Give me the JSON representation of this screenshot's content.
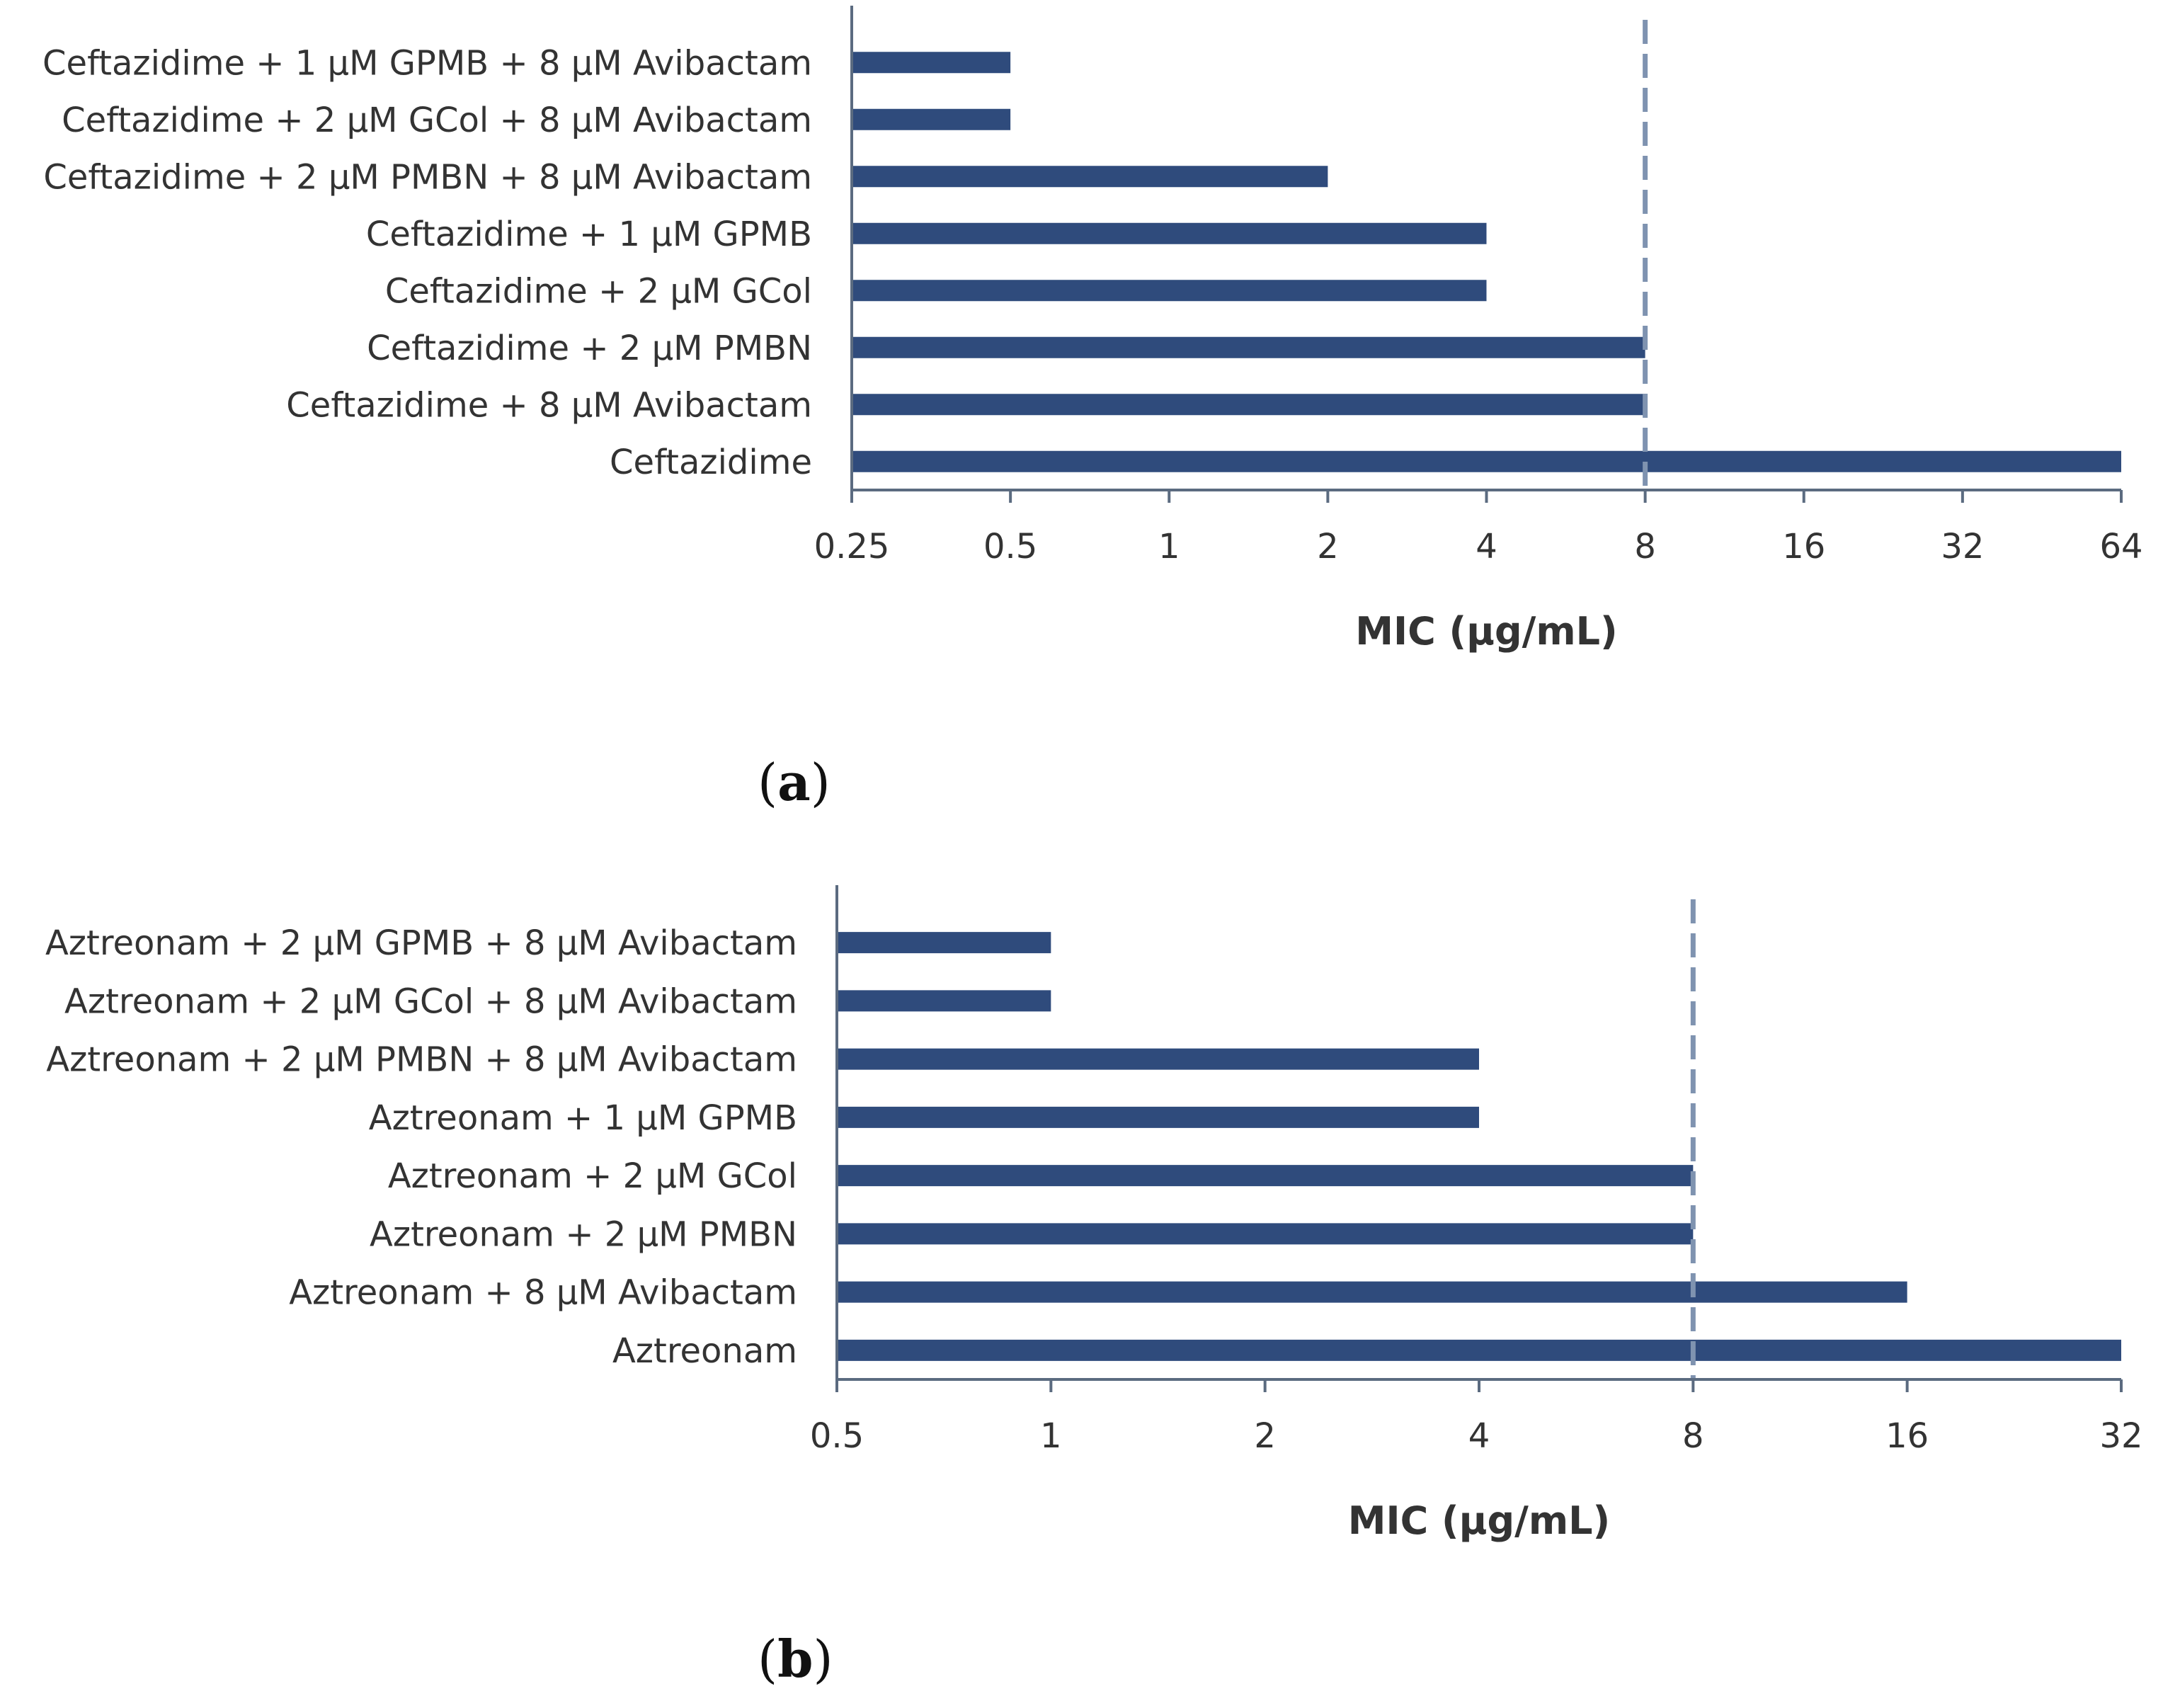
{
  "colors": {
    "bar": "#2f4b7c",
    "axis": "#5b6b80",
    "reference": "#7f93b0",
    "text": "#333333"
  },
  "chart_data": [
    {
      "type": "bar",
      "orientation": "horizontal",
      "x_scale": "log2",
      "categories": [
        "Ceftazidime + 1 µM GPMB + 8 µM Avibactam",
        "Ceftazidime + 2 µM GCol + 8 µM Avibactam",
        "Ceftazidime + 2 µM PMBN + 8 µM Avibactam",
        "Ceftazidime + 1 µM GPMB",
        "Ceftazidime + 2 µM GCol",
        "Ceftazidime + 2 µM PMBN",
        "Ceftazidime + 8 µM Avibactam",
        "Ceftazidime"
      ],
      "values": [
        0.5,
        0.5,
        2,
        4,
        4,
        8,
        8,
        64
      ],
      "xlim": [
        0.25,
        64
      ],
      "xticks": [
        "0.25",
        "0.5",
        "1",
        "2",
        "4",
        "8",
        "16",
        "32",
        "64"
      ],
      "reference_line": 8,
      "xlabel": "MIC (µg/mL)",
      "panel_label": "(a)",
      "panel_letter": "a"
    },
    {
      "type": "bar",
      "orientation": "horizontal",
      "x_scale": "log2",
      "categories": [
        "Aztreonam + 2 µM GPMB + 8 µM Avibactam",
        "Aztreonam + 2 µM GCol + 8 µM Avibactam",
        "Aztreonam + 2 µM PMBN + 8 µM Avibactam",
        "Aztreonam + 1 µM GPMB",
        "Aztreonam + 2 µM GCol",
        "Aztreonam + 2 µM PMBN",
        "Aztreonam + 8 µM Avibactam",
        "Aztreonam"
      ],
      "values": [
        1,
        1,
        4,
        4,
        8,
        8,
        16,
        32
      ],
      "xlim": [
        0.5,
        32
      ],
      "xticks": [
        "0.5",
        "1",
        "2",
        "4",
        "8",
        "16",
        "32"
      ],
      "reference_line": 8,
      "xlabel": "MIC (µg/mL)",
      "panel_label": "(b)",
      "panel_letter": "b"
    }
  ]
}
